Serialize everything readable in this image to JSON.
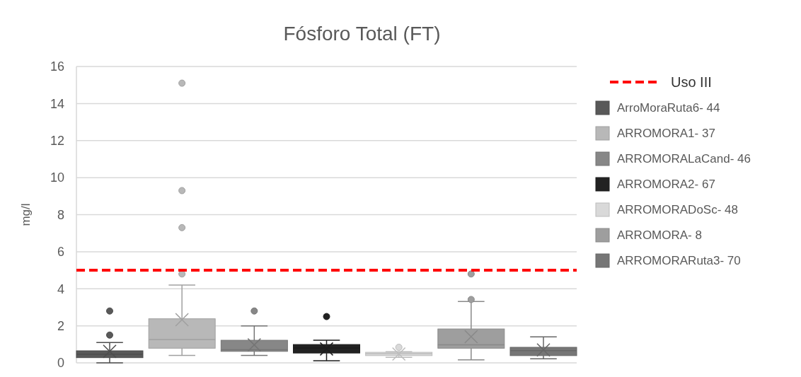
{
  "chart_data": {
    "type": "box",
    "title": "Fósforo Total (FT)",
    "ylabel": "mg/l",
    "categories": [
      null,
      null,
      null,
      null,
      null,
      null,
      null
    ],
    "ylim": [
      0,
      16
    ],
    "yticks": [
      0,
      2,
      4,
      6,
      8,
      10,
      12,
      14,
      16
    ],
    "grid": "y",
    "legend": "right",
    "marker": "cross",
    "ref_lines": [
      {
        "axis": "y",
        "value": 5,
        "label": "Uso III",
        "color": "#ff0000",
        "line_style": "dashed"
      }
    ],
    "series": [
      {
        "name": "ArroMoraRuta6- 44",
        "color": "#595959",
        "boxes": [
          {
            "low": 0,
            "q1": 0.28,
            "median": 0.47,
            "q3": 0.65,
            "high": 1.1,
            "mean": 0.62,
            "outliers": [
              2.8,
              1.5
            ]
          },
          null,
          null,
          null,
          null,
          null,
          null
        ]
      },
      {
        "name": "ARROMORA1- 37",
        "color": "#b8b8b8",
        "boxes": [
          null,
          {
            "low": 0.4,
            "q1": 0.79,
            "median": 1.26,
            "q3": 2.38,
            "high": 4.2,
            "mean": 2.33,
            "outliers": [
              15.1,
              9.3,
              7.3,
              4.8
            ]
          },
          null,
          null,
          null,
          null,
          null
        ]
      },
      {
        "name": "ARROMORALaCand- 46",
        "color": "#878787",
        "boxes": [
          null,
          null,
          {
            "low": 0.4,
            "q1": 0.62,
            "median": 0.71,
            "q3": 1.22,
            "high": 2.0,
            "mean": 0.97,
            "outliers": [
              2.8
            ]
          },
          null,
          null,
          null,
          null
        ]
      },
      {
        "name": "ARROMORA2- 67",
        "color": "#222222",
        "boxes": [
          null,
          null,
          null,
          {
            "low": 0.11,
            "q1": 0.53,
            "median": 0.8,
            "q3": 0.99,
            "high": 1.22,
            "mean": 0.75,
            "outliers": [
              2.5
            ]
          },
          null,
          null,
          null
        ]
      },
      {
        "name": "ARROMORADoSc- 48",
        "color": "#d9d9d9",
        "boxes": [
          null,
          null,
          null,
          null,
          {
            "low": 0.3,
            "q1": 0.39,
            "median": 0.5,
            "q3": 0.57,
            "high": 0.6,
            "mean": 0.48,
            "outliers": [
              0.84
            ]
          },
          null,
          null
        ]
      },
      {
        "name": "ARROMORA- 8",
        "color": "#9e9e9e",
        "boxes": [
          null,
          null,
          null,
          null,
          null,
          {
            "low": 0.16,
            "q1": 0.79,
            "median": 0.97,
            "q3": 1.83,
            "high": 3.31,
            "mean": 1.41,
            "outliers": [
              3.42,
              4.8
            ]
          },
          null
        ]
      },
      {
        "name": "ARROMORARuta3- 70",
        "color": "#767676",
        "boxes": [
          null,
          null,
          null,
          null,
          null,
          null,
          {
            "low": 0.22,
            "q1": 0.39,
            "median": 0.66,
            "q3": 0.84,
            "high": 1.4,
            "mean": 0.7
          }
        ]
      }
    ]
  }
}
